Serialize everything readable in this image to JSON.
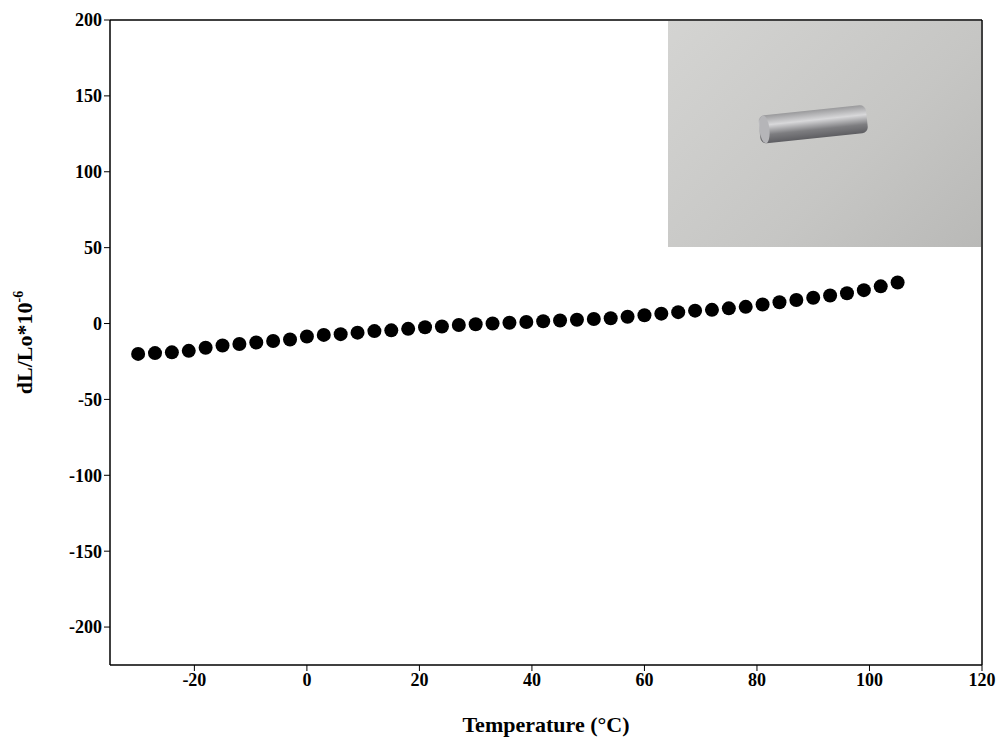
{
  "chart_data": {
    "type": "scatter",
    "x_label": "Temperature (°C)",
    "y_label": "dL/Lo*10",
    "y_label_superscript": "-6",
    "x": [
      -30,
      -27,
      -24,
      -21,
      -18,
      -15,
      -12,
      -9,
      -6,
      -3,
      0,
      3,
      6,
      9,
      12,
      15,
      18,
      21,
      24,
      27,
      30,
      33,
      36,
      39,
      42,
      45,
      48,
      51,
      54,
      57,
      60,
      63,
      66,
      69,
      72,
      75,
      78,
      81,
      84,
      87,
      90,
      93,
      96,
      99,
      102,
      105
    ],
    "values": [
      -20,
      -19.5,
      -19,
      -18,
      -16,
      -14.5,
      -13.5,
      -12.5,
      -11.5,
      -10.5,
      -8.5,
      -7.5,
      -7,
      -6,
      -5,
      -4.5,
      -3.5,
      -2.5,
      -2,
      -1,
      -0.5,
      0,
      0.5,
      1,
      1.5,
      2,
      2.5,
      3,
      3.5,
      4.5,
      5.5,
      6.5,
      7.5,
      8.5,
      9,
      10,
      11,
      12.5,
      14,
      15.5,
      17,
      18.5,
      20,
      22,
      24.5,
      27
    ],
    "color": "#000000",
    "marker": "circle",
    "xlim": [
      -35,
      120
    ],
    "xticks": [
      -20,
      0,
      20,
      40,
      60,
      80,
      100,
      120
    ],
    "ylim": [
      -225,
      200
    ],
    "yticks": [
      -200,
      -150,
      -100,
      -50,
      0,
      50,
      100,
      150,
      200
    ],
    "grid": false
  }
}
